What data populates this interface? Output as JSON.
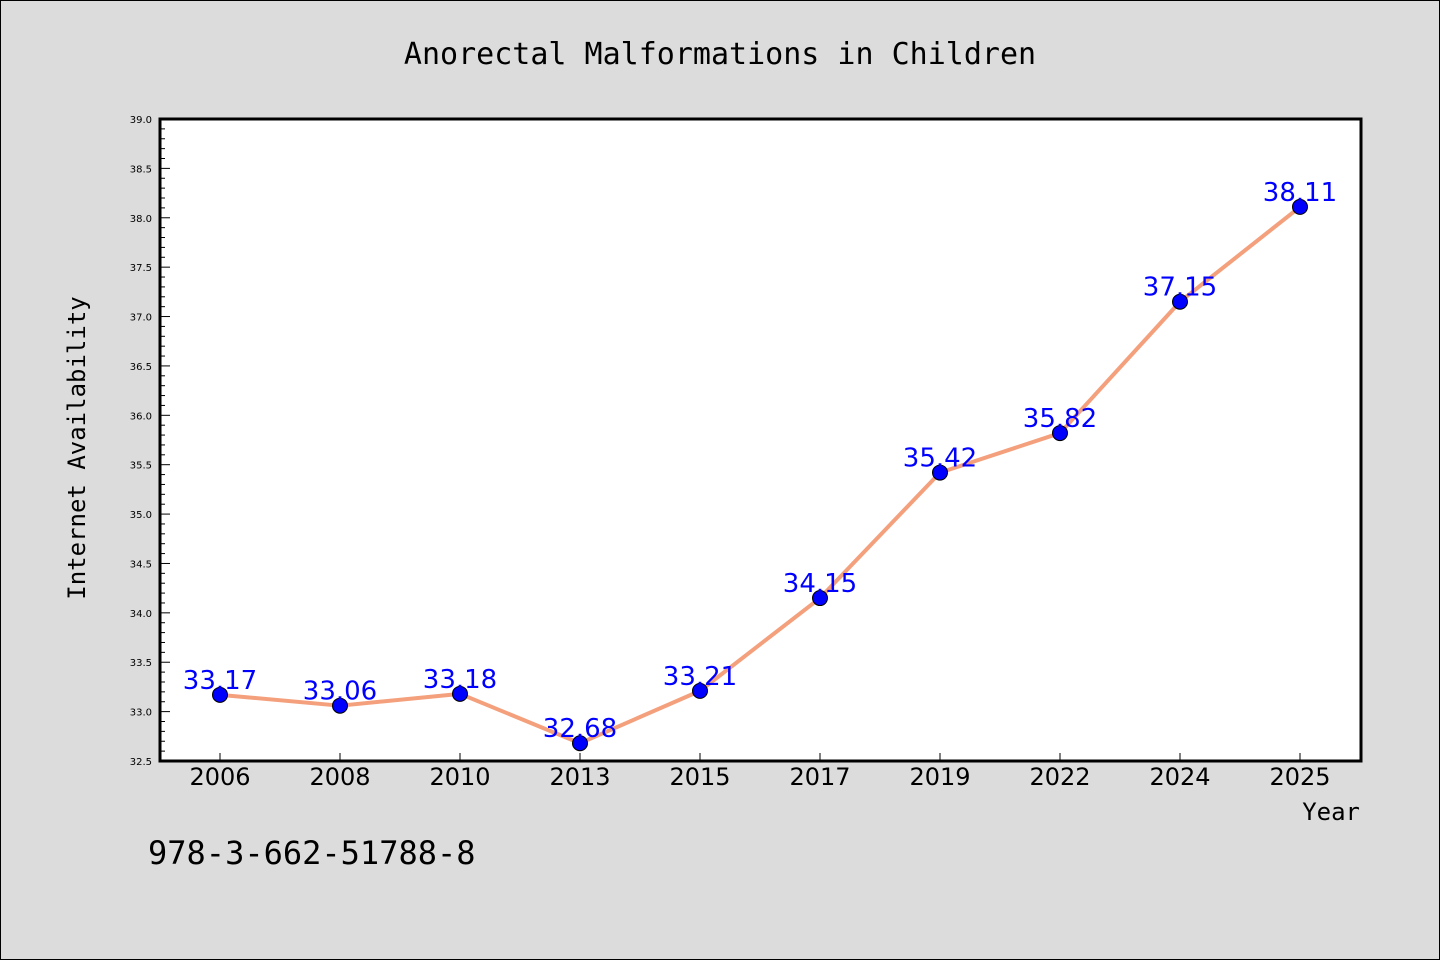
{
  "chart_data": {
    "type": "line",
    "title": "Anorectal Malformations in Children",
    "xlabel": "Year",
    "ylabel": "Internet Availability",
    "categories": [
      "2006",
      "2008",
      "2010",
      "2013",
      "2015",
      "2017",
      "2019",
      "2022",
      "2024",
      "2025"
    ],
    "series": [
      {
        "values": [
          33.17,
          33.06,
          33.18,
          32.68,
          33.21,
          34.15,
          35.42,
          35.82,
          37.15,
          38.11
        ],
        "labels": [
          "33.17",
          "33.06",
          "33.18",
          "32.68",
          "33.21",
          "34.15",
          "35.42",
          "35.82",
          "37.15",
          "38.11"
        ],
        "line_color": "#f4a07c",
        "marker_color": "#0000ff"
      }
    ],
    "ylim": [
      32.5,
      39.0
    ],
    "yticks": [
      "32.5",
      "33.0",
      "33.5",
      "34.0",
      "34.5",
      "35.0",
      "35.5",
      "36.0",
      "36.5",
      "37.0",
      "37.5",
      "38.0",
      "38.5",
      "39.0"
    ],
    "grid": false,
    "legend": false
  },
  "footnote": "978-3-662-51788-8",
  "colors": {
    "background": "#dcdcdc",
    "plot_background": "#ffffff"
  }
}
